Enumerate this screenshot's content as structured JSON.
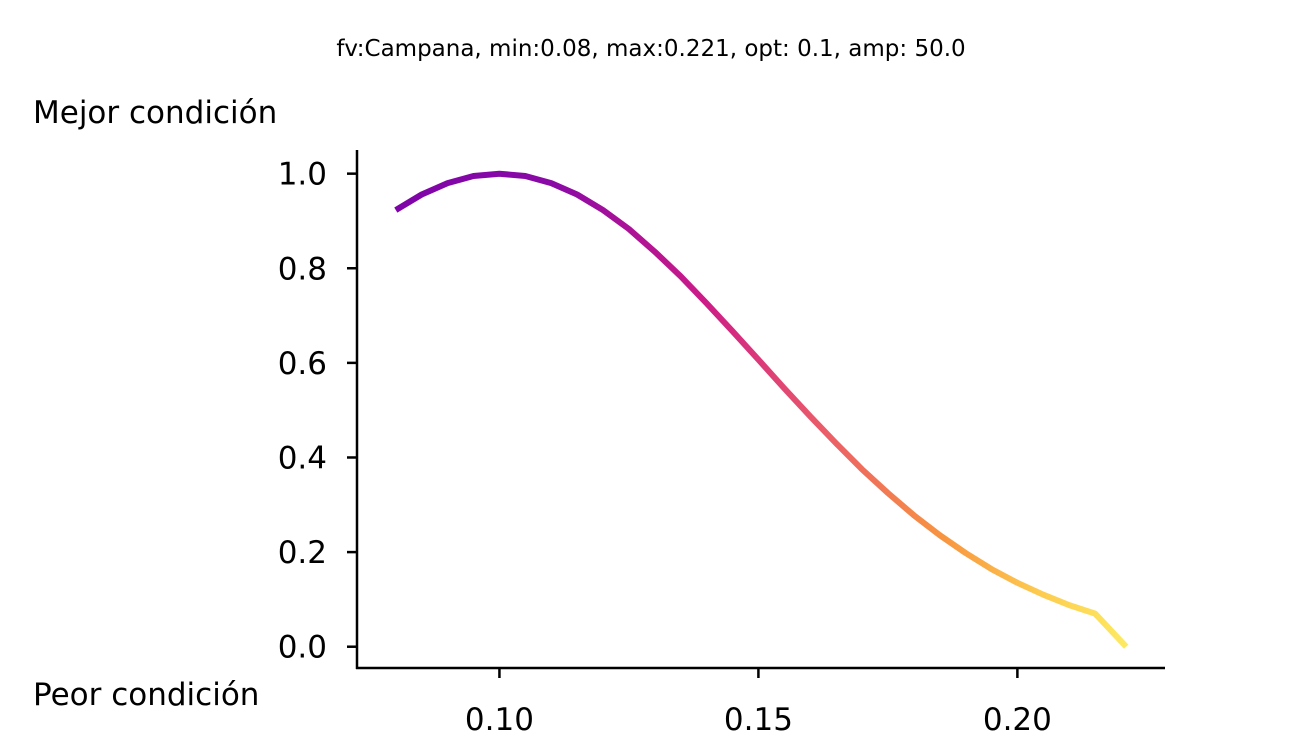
{
  "chart_data": {
    "type": "line",
    "title": "fv:Campana, min:0.08, max:0.221, opt: 0.1, amp: 50.0",
    "top_label": "Mejor condición",
    "bottom_label": "Peor condición",
    "xlabel": "",
    "ylabel": "",
    "xlim": [
      0.0725,
      0.2285
    ],
    "ylim": [
      -0.045,
      1.05
    ],
    "x_ticks": [
      0.1,
      0.15,
      0.2
    ],
    "x_tick_labels": [
      "0.10",
      "0.15",
      "0.20"
    ],
    "y_ticks": [
      0.0,
      0.2,
      0.4,
      0.6,
      0.8,
      1.0
    ],
    "y_tick_labels": [
      "0.0",
      "0.2",
      "0.4",
      "0.6",
      "0.8",
      "1.0"
    ],
    "grid": false,
    "colormap": "plasma",
    "line_color_range": [
      "#7e03a8",
      "#fdea62"
    ],
    "series": [
      {
        "x": [
          0.08,
          0.085,
          0.09,
          0.095,
          0.1,
          0.105,
          0.11,
          0.115,
          0.12,
          0.125,
          0.13,
          0.135,
          0.14,
          0.145,
          0.15,
          0.155,
          0.16,
          0.165,
          0.17,
          0.175,
          0.18,
          0.185,
          0.19,
          0.195,
          0.2,
          0.205,
          0.21,
          0.215,
          0.221
        ],
        "y": [
          0.923,
          0.956,
          0.98,
          0.995,
          1.0,
          0.995,
          0.98,
          0.956,
          0.923,
          0.883,
          0.835,
          0.783,
          0.726,
          0.667,
          0.607,
          0.546,
          0.487,
          0.43,
          0.375,
          0.325,
          0.278,
          0.236,
          0.198,
          0.164,
          0.135,
          0.11,
          0.088,
          0.07,
          0.0
        ]
      }
    ]
  }
}
